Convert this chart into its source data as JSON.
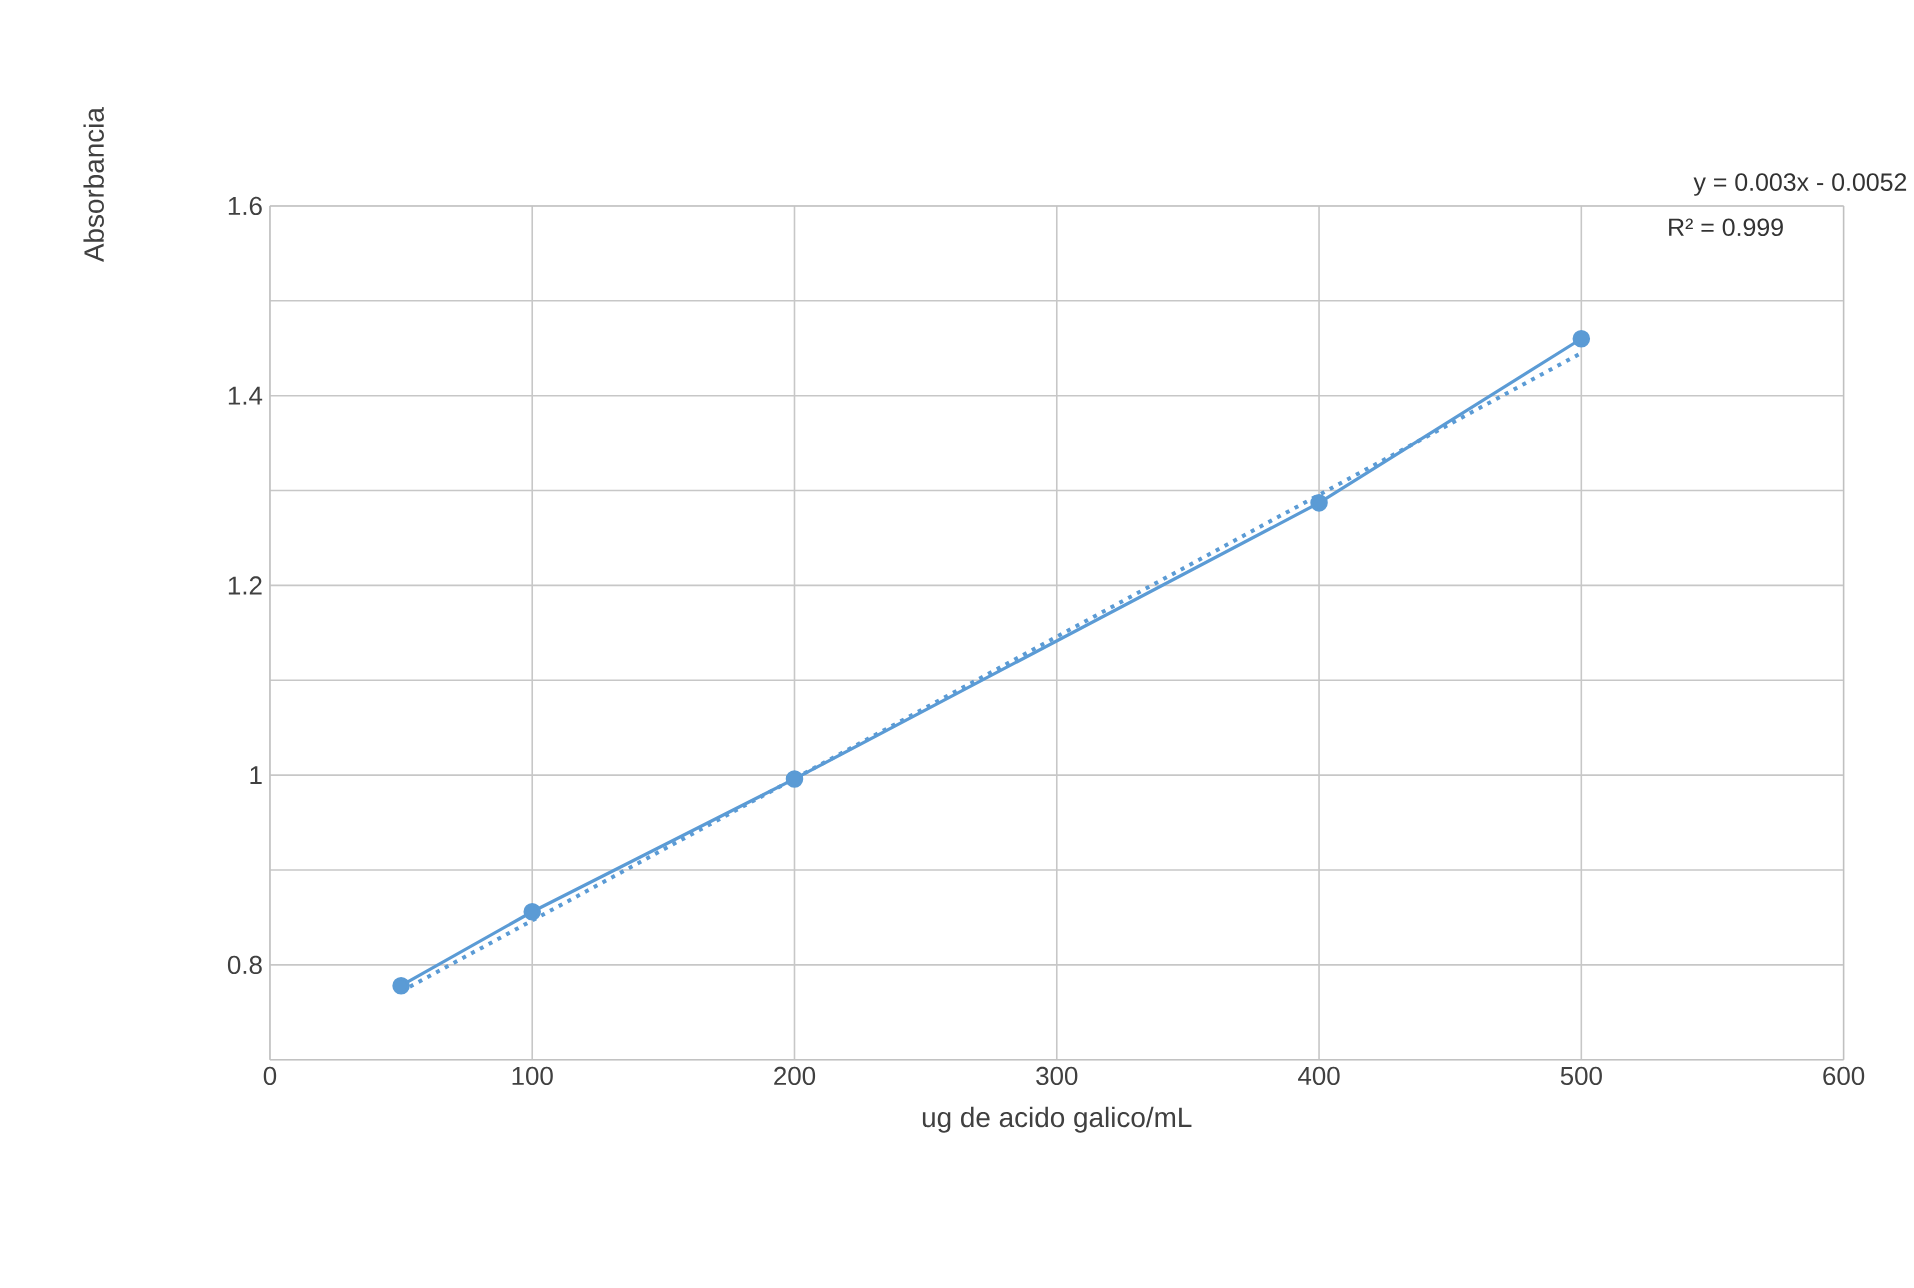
{
  "chart_data": {
    "type": "line",
    "xlabel": "ug de acido galico/mL",
    "ylabel": "Absorbancia",
    "x": [
      50,
      100,
      200,
      400,
      500
    ],
    "series": [
      {
        "color": "#5b9bd5",
        "values": [
          0.778,
          0.856,
          0.996,
          1.287,
          1.46
        ],
        "marker": "circle",
        "line_style": "solid"
      },
      {
        "type": "line",
        "color": "#5b9bd5",
        "x": [
          50,
          500
        ],
        "values": [
          0.772,
          1.445
        ],
        "marker": "none",
        "line_style": "dotted"
      }
    ],
    "xlim": [
      0,
      600
    ],
    "xticks": [
      0,
      100,
      200,
      300,
      400,
      500,
      600
    ],
    "ylim": [
      0.7,
      1.6
    ],
    "yticks": [
      {
        "value": 0.7,
        "label": null
      },
      {
        "value": 0.8,
        "label": "0.8"
      },
      {
        "value": 0.9,
        "label": null
      },
      {
        "value": 1,
        "label": "1"
      },
      {
        "value": 1.1,
        "label": null
      },
      {
        "value": 1.2,
        "label": "1.2"
      },
      {
        "value": 1.3,
        "label": null
      },
      {
        "value": 1.4,
        "label": "1.4"
      },
      {
        "value": 1.5,
        "label": null
      },
      1.6
    ],
    "grid": true,
    "annotations": [
      "y = 0.003x - 0.0052",
      "R² = 0.999"
    ]
  }
}
